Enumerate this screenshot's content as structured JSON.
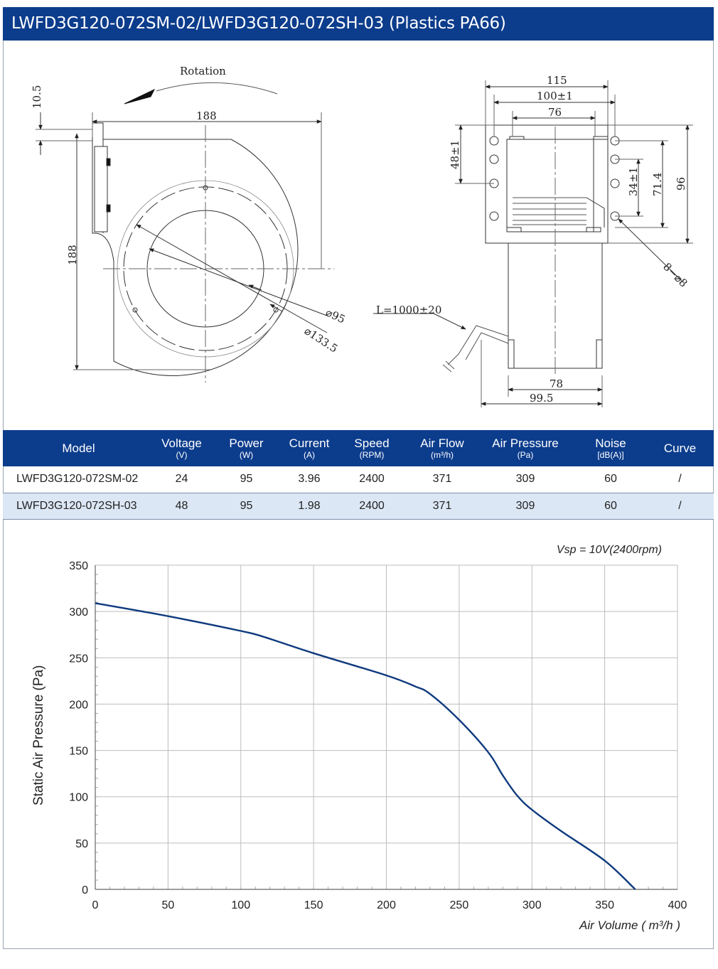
{
  "title": "LWFD3G120-072SM-02/LWFD3G120-072SH-03 (Plastics PA66)",
  "drawing": {
    "rotation_label": "Rotation",
    "dim_10_5": "10.5",
    "dim_188_top": "188",
    "dim_188_side": "188",
    "dim_d95": "⌀95",
    "dim_d133": "⌀133.5",
    "dim_115": "115",
    "dim_100": "100±1",
    "dim_76": "76",
    "dim_48": "48±1",
    "dim_34": "34±1",
    "dim_71_4": "71.4",
    "dim_96": "96",
    "dim_holes": "8−⌀8",
    "dim_cable": "L=1000±20",
    "dim_78": "78",
    "dim_99_5": "99.5"
  },
  "table": {
    "headers": [
      {
        "label": "Model",
        "unit": ""
      },
      {
        "label": "Voltage",
        "unit": "(V)"
      },
      {
        "label": "Power",
        "unit": "(W)"
      },
      {
        "label": "Current",
        "unit": "(A)"
      },
      {
        "label": "Speed",
        "unit": "(RPM)"
      },
      {
        "label": "Air Flow",
        "unit": "(m³/h)"
      },
      {
        "label": "Air Pressure",
        "unit": "(Pa)"
      },
      {
        "label": "Noise",
        "unit": "[dB(A)]"
      },
      {
        "label": "Curve",
        "unit": ""
      }
    ],
    "rows": [
      [
        "LWFD3G120-072SM-02",
        "24",
        "95",
        "3.96",
        "2400",
        "371",
        "309",
        "60",
        "/"
      ],
      [
        "LWFD3G120-072SH-03",
        "48",
        "95",
        "1.98",
        "2400",
        "371",
        "309",
        "60",
        "/"
      ]
    ]
  },
  "chart_data": {
    "type": "line",
    "annotation": "Vsp = 10V(2400rpm)",
    "xlabel": "Air Volume ( m³/h )",
    "ylabel": "Static Air Pressure  (Pa)",
    "xlim": [
      0,
      400
    ],
    "ylim": [
      0,
      350
    ],
    "x_ticks": [
      0,
      50,
      100,
      150,
      200,
      250,
      300,
      350,
      400
    ],
    "y_ticks": [
      0,
      50,
      100,
      150,
      200,
      250,
      300,
      350
    ],
    "grid": true,
    "line_color": "#0e3a7e",
    "series": [
      {
        "x": [
          0,
          50,
          100,
          115,
          150,
          200,
          220,
          230,
          250,
          270,
          280,
          290,
          300,
          320,
          350,
          371
        ],
        "y": [
          309,
          295,
          279,
          273,
          255,
          231,
          219,
          211,
          183,
          148,
          123,
          101,
          86,
          63,
          31,
          0
        ]
      }
    ]
  }
}
